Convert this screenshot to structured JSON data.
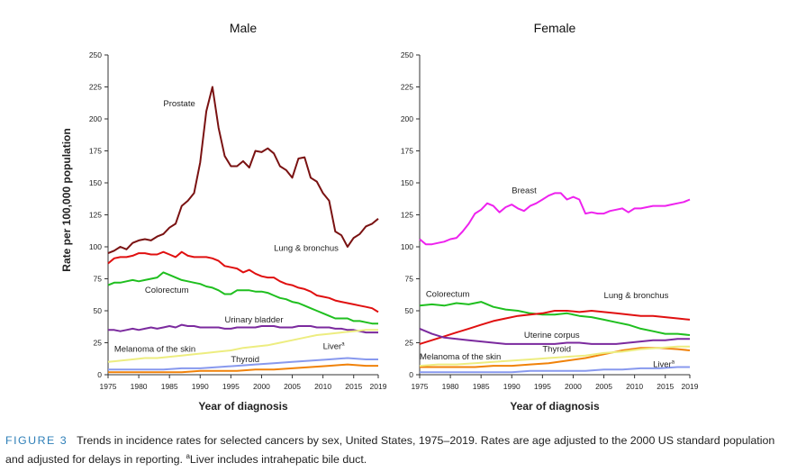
{
  "figure": {
    "caption_label": "FIGURE 3",
    "caption_text": "Trends in incidence rates for selected cancers by sex, United States, 1975–2019. Rates are age adjusted to the 2000 US standard population and adjusted for delays in reporting. ",
    "caption_footnote_mark": "a",
    "caption_footnote": "Liver includes intrahepatic bile duct."
  },
  "ylabel": "Rate per 100,000 population",
  "chart_data": [
    {
      "type": "line",
      "title": "Male",
      "xlabel": "Year of diagnosis",
      "ylabel": "Rate per 100,000 population",
      "xlim": [
        1975,
        2019
      ],
      "ylim": [
        0,
        250
      ],
      "xticks": [
        1975,
        1980,
        1985,
        1990,
        1995,
        2000,
        2005,
        2010,
        2015,
        2019
      ],
      "yticks": [
        0,
        25,
        50,
        75,
        100,
        125,
        150,
        175,
        200,
        225,
        250
      ],
      "grid": false,
      "series": [
        {
          "name": "Prostate",
          "color": "#7a1212",
          "label_pos": [
            1984,
            210
          ],
          "label_anchor": "start",
          "x": [
            1975,
            1976,
            1977,
            1978,
            1979,
            1980,
            1981,
            1982,
            1983,
            1984,
            1985,
            1986,
            1987,
            1988,
            1989,
            1990,
            1991,
            1992,
            1993,
            1994,
            1995,
            1996,
            1997,
            1998,
            1999,
            2000,
            2001,
            2002,
            2003,
            2004,
            2005,
            2006,
            2007,
            2008,
            2009,
            2010,
            2011,
            2012,
            2013,
            2014,
            2015,
            2016,
            2017,
            2018,
            2019
          ],
          "values": [
            95,
            97,
            100,
            98,
            103,
            105,
            106,
            105,
            108,
            110,
            115,
            118,
            132,
            136,
            142,
            166,
            206,
            225,
            193,
            171,
            163,
            163,
            167,
            162,
            175,
            174,
            177,
            173,
            163,
            160,
            154,
            169,
            170,
            154,
            151,
            142,
            136,
            112,
            109,
            100,
            107,
            110,
            116,
            118,
            122
          ]
        },
        {
          "name": "Lung & bronchus",
          "color": "#e01010",
          "label_pos": [
            2002,
            97
          ],
          "label_anchor": "start",
          "x": [
            1975,
            1976,
            1977,
            1978,
            1979,
            1980,
            1981,
            1982,
            1983,
            1984,
            1985,
            1986,
            1987,
            1988,
            1989,
            1990,
            1991,
            1992,
            1993,
            1994,
            1995,
            1996,
            1997,
            1998,
            1999,
            2000,
            2001,
            2002,
            2003,
            2004,
            2005,
            2006,
            2007,
            2008,
            2009,
            2010,
            2011,
            2012,
            2013,
            2014,
            2015,
            2016,
            2017,
            2018,
            2019
          ],
          "values": [
            87,
            91,
            92,
            92,
            93,
            95,
            95,
            94,
            94,
            96,
            94,
            92,
            96,
            93,
            92,
            92,
            92,
            91,
            89,
            85,
            84,
            83,
            80,
            82,
            79,
            77,
            76,
            76,
            73,
            71,
            70,
            68,
            67,
            65,
            62,
            61,
            60,
            58,
            57,
            56,
            55,
            54,
            53,
            52,
            49
          ]
        },
        {
          "name": "Colorectum",
          "color": "#1fbf1f",
          "label_pos": [
            1981,
            64
          ],
          "label_anchor": "start",
          "x": [
            1975,
            1976,
            1977,
            1978,
            1979,
            1980,
            1981,
            1982,
            1983,
            1984,
            1985,
            1986,
            1987,
            1988,
            1989,
            1990,
            1991,
            1992,
            1993,
            1994,
            1995,
            1996,
            1997,
            1998,
            1999,
            2000,
            2001,
            2002,
            2003,
            2004,
            2005,
            2006,
            2007,
            2008,
            2009,
            2010,
            2011,
            2012,
            2013,
            2014,
            2015,
            2016,
            2017,
            2018,
            2019
          ],
          "values": [
            70,
            72,
            72,
            73,
            74,
            73,
            74,
            75,
            76,
            80,
            78,
            76,
            74,
            73,
            72,
            71,
            69,
            68,
            66,
            63,
            63,
            66,
            66,
            66,
            65,
            65,
            64,
            62,
            60,
            59,
            57,
            56,
            54,
            52,
            50,
            48,
            46,
            44,
            44,
            44,
            42,
            42,
            41,
            40,
            40
          ]
        },
        {
          "name": "Urinary bladder",
          "color": "#7b2a9e",
          "label_pos": [
            1994,
            41
          ],
          "label_anchor": "start",
          "x": [
            1975,
            1976,
            1977,
            1978,
            1979,
            1980,
            1981,
            1982,
            1983,
            1984,
            1985,
            1986,
            1987,
            1988,
            1989,
            1990,
            1991,
            1992,
            1993,
            1994,
            1995,
            1996,
            1997,
            1998,
            1999,
            2000,
            2001,
            2002,
            2003,
            2004,
            2005,
            2006,
            2007,
            2008,
            2009,
            2010,
            2011,
            2012,
            2013,
            2014,
            2015,
            2016,
            2017,
            2018,
            2019
          ],
          "values": [
            35,
            35,
            34,
            35,
            36,
            35,
            36,
            37,
            36,
            37,
            38,
            37,
            39,
            38,
            38,
            37,
            37,
            37,
            37,
            36,
            36,
            37,
            37,
            37,
            37,
            38,
            38,
            38,
            37,
            37,
            37,
            38,
            38,
            38,
            37,
            37,
            37,
            36,
            36,
            35,
            35,
            34,
            33,
            33,
            33
          ]
        },
        {
          "name": "Melanoma of the skin",
          "color": "#eded80",
          "label_pos": [
            1976,
            18
          ],
          "label_anchor": "start",
          "x": [
            1975,
            1977,
            1979,
            1981,
            1983,
            1985,
            1987,
            1989,
            1991,
            1993,
            1995,
            1997,
            1999,
            2001,
            2003,
            2005,
            2007,
            2009,
            2011,
            2013,
            2015,
            2017,
            2019
          ],
          "values": [
            10,
            11,
            12,
            13,
            13,
            14,
            15,
            16,
            17,
            18,
            19,
            21,
            22,
            23,
            25,
            27,
            29,
            31,
            32,
            33,
            34,
            35,
            35
          ]
        },
        {
          "name": "Thyroid",
          "color": "#f0820a",
          "label_pos": [
            1995,
            10
          ],
          "label_anchor": "start",
          "x": [
            1975,
            1978,
            1981,
            1984,
            1987,
            1990,
            1993,
            1996,
            1999,
            2002,
            2005,
            2008,
            2011,
            2014,
            2017,
            2019
          ],
          "values": [
            2,
            2,
            2,
            2,
            2,
            3,
            3,
            3,
            4,
            4,
            5,
            6,
            7,
            8,
            7,
            7
          ]
        },
        {
          "name": "Liver",
          "label_sup": "a",
          "color": "#8899ee",
          "label_pos": [
            2010,
            20
          ],
          "label_anchor": "start",
          "x": [
            1975,
            1978,
            1981,
            1984,
            1987,
            1990,
            1993,
            1996,
            1999,
            2002,
            2005,
            2008,
            2011,
            2014,
            2017,
            2019
          ],
          "values": [
            4,
            4,
            4,
            4,
            5,
            5,
            6,
            7,
            8,
            9,
            10,
            11,
            12,
            13,
            12,
            12
          ]
        }
      ]
    },
    {
      "type": "line",
      "title": "Female",
      "xlabel": "Year of diagnosis",
      "xlim": [
        1975,
        2019
      ],
      "ylim": [
        0,
        250
      ],
      "xticks": [
        1975,
        1980,
        1985,
        1990,
        1995,
        2000,
        2005,
        2010,
        2015,
        2019
      ],
      "yticks": [
        0,
        25,
        50,
        75,
        100,
        125,
        150,
        175,
        200,
        225,
        250
      ],
      "grid": false,
      "series": [
        {
          "name": "Breast",
          "color": "#ee22ee",
          "label_pos": [
            1990,
            142
          ],
          "label_anchor": "start",
          "x": [
            1975,
            1976,
            1977,
            1978,
            1979,
            1980,
            1981,
            1982,
            1983,
            1984,
            1985,
            1986,
            1987,
            1988,
            1989,
            1990,
            1991,
            1992,
            1993,
            1994,
            1995,
            1996,
            1997,
            1998,
            1999,
            2000,
            2001,
            2002,
            2003,
            2004,
            2005,
            2006,
            2007,
            2008,
            2009,
            2010,
            2011,
            2012,
            2013,
            2014,
            2015,
            2016,
            2017,
            2018,
            2019
          ],
          "values": [
            106,
            102,
            102,
            103,
            104,
            106,
            107,
            112,
            118,
            126,
            129,
            134,
            132,
            127,
            131,
            133,
            130,
            128,
            132,
            134,
            137,
            140,
            142,
            142,
            137,
            139,
            137,
            126,
            127,
            126,
            126,
            128,
            129,
            130,
            127,
            130,
            130,
            131,
            132,
            132,
            132,
            133,
            134,
            135,
            137
          ]
        },
        {
          "name": "Colorectum",
          "color": "#1fbf1f",
          "label_pos": [
            1976,
            61
          ],
          "label_anchor": "start",
          "x": [
            1975,
            1977,
            1979,
            1981,
            1983,
            1985,
            1987,
            1989,
            1991,
            1993,
            1995,
            1997,
            1999,
            2001,
            2003,
            2005,
            2007,
            2009,
            2011,
            2013,
            2015,
            2017,
            2019
          ],
          "values": [
            54,
            55,
            54,
            56,
            55,
            57,
            53,
            51,
            50,
            48,
            47,
            47,
            48,
            46,
            45,
            43,
            41,
            39,
            36,
            34,
            32,
            32,
            31
          ]
        },
        {
          "name": "Lung & bronchus",
          "color": "#e01010",
          "label_pos": [
            2005,
            60
          ],
          "label_anchor": "start",
          "x": [
            1975,
            1977,
            1979,
            1981,
            1983,
            1985,
            1987,
            1989,
            1991,
            1993,
            1995,
            1997,
            1999,
            2001,
            2003,
            2005,
            2007,
            2009,
            2011,
            2013,
            2015,
            2017,
            2019
          ],
          "values": [
            24,
            27,
            30,
            33,
            36,
            39,
            42,
            44,
            46,
            47,
            48,
            50,
            50,
            49,
            50,
            49,
            48,
            47,
            46,
            46,
            45,
            44,
            43
          ]
        },
        {
          "name": "Uterine corpus",
          "color": "#7b2a9e",
          "label_pos": [
            1992,
            29
          ],
          "label_anchor": "start",
          "x": [
            1975,
            1977,
            1979,
            1981,
            1983,
            1985,
            1987,
            1989,
            1991,
            1993,
            1995,
            1997,
            1999,
            2001,
            2003,
            2005,
            2007,
            2009,
            2011,
            2013,
            2015,
            2017,
            2019
          ],
          "values": [
            36,
            32,
            29,
            28,
            27,
            26,
            25,
            24,
            24,
            24,
            24,
            24,
            25,
            25,
            24,
            24,
            24,
            25,
            26,
            27,
            27,
            28,
            28
          ]
        },
        {
          "name": "Thyroid",
          "color": "#f0820a",
          "label_pos": [
            1995,
            18
          ],
          "label_anchor": "start",
          "x": [
            1975,
            1978,
            1981,
            1984,
            1987,
            1990,
            1993,
            1996,
            1999,
            2002,
            2005,
            2008,
            2011,
            2014,
            2017,
            2019
          ],
          "values": [
            6,
            6,
            6,
            6,
            7,
            7,
            8,
            9,
            11,
            13,
            16,
            19,
            21,
            21,
            20,
            19
          ]
        },
        {
          "name": "Melanoma of the skin",
          "color": "#eded80",
          "label_pos": [
            1975,
            12
          ],
          "label_anchor": "start",
          "x": [
            1975,
            1978,
            1981,
            1984,
            1987,
            1990,
            1993,
            1996,
            1999,
            2002,
            2005,
            2008,
            2011,
            2014,
            2017,
            2019
          ],
          "values": [
            7,
            8,
            8,
            9,
            10,
            11,
            12,
            13,
            14,
            15,
            17,
            18,
            20,
            21,
            22,
            22
          ]
        },
        {
          "name": "Liver",
          "label_sup": "a",
          "color": "#8899ee",
          "label_pos": [
            2013,
            6
          ],
          "label_anchor": "start",
          "x": [
            1975,
            1978,
            1981,
            1984,
            1987,
            1990,
            1993,
            1996,
            1999,
            2002,
            2005,
            2008,
            2011,
            2014,
            2017,
            2019
          ],
          "values": [
            2,
            2,
            2,
            2,
            2,
            2,
            3,
            3,
            3,
            3,
            4,
            4,
            5,
            5,
            6,
            6
          ]
        }
      ]
    }
  ]
}
